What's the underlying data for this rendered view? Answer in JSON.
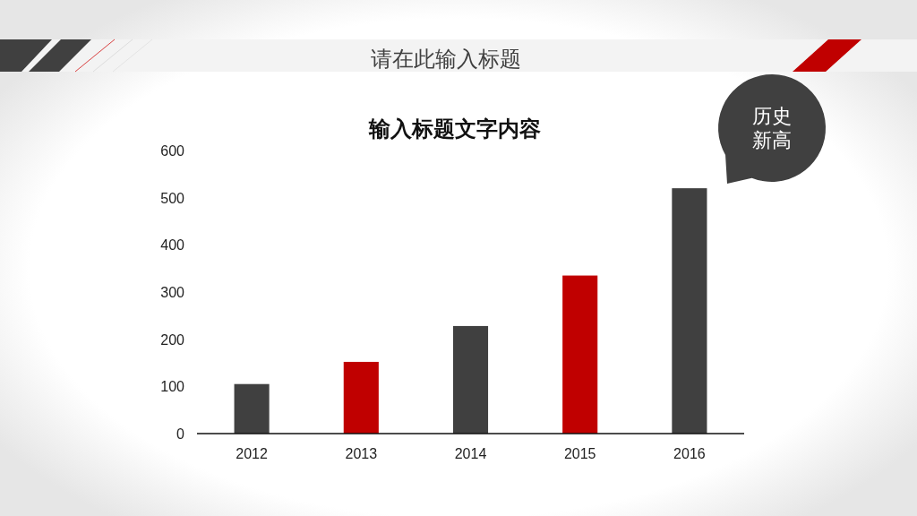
{
  "chart_data": {
    "type": "bar",
    "title": "请在此输入标题",
    "subtitle": "输入标题文字内容",
    "categories": [
      "2012",
      "2013",
      "2014",
      "2015",
      "2016"
    ],
    "values": [
      105,
      152,
      228,
      335,
      520
    ],
    "colors": [
      "#404040",
      "#c00000",
      "#404040",
      "#c00000",
      "#404040"
    ],
    "ylim": [
      0,
      600
    ],
    "yticks": [
      0,
      100,
      200,
      300,
      400,
      500,
      600
    ],
    "annotations": [
      "历史新高"
    ]
  }
}
